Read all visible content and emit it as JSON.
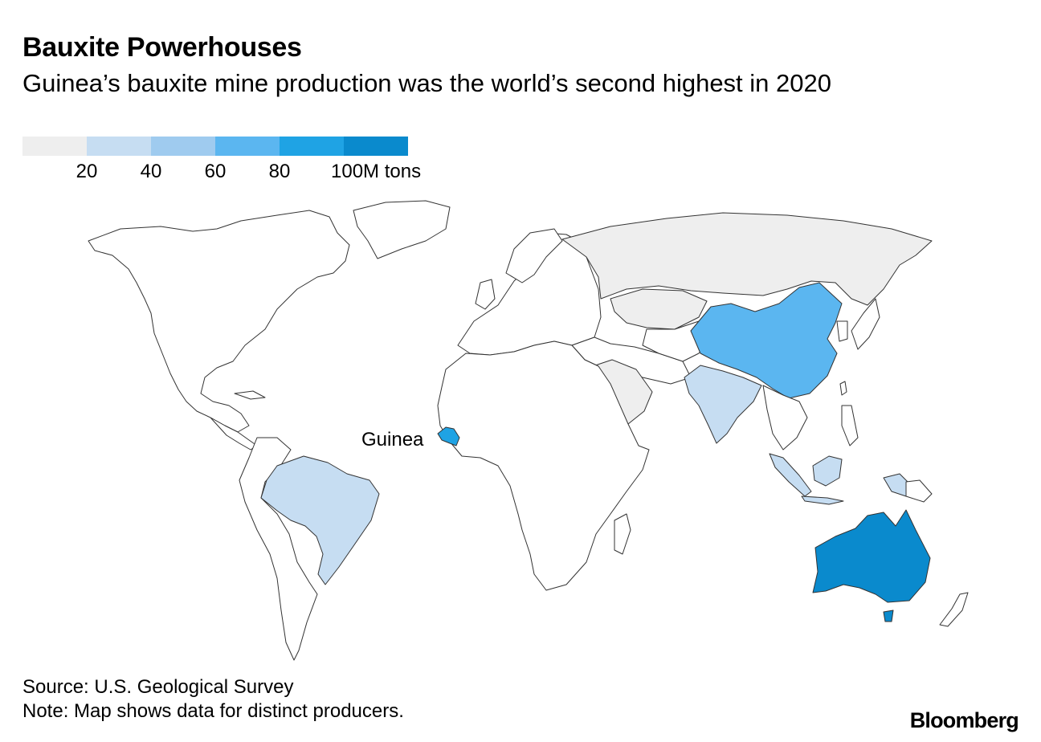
{
  "header": {
    "title": "Bauxite Powerhouses",
    "subtitle": "Guinea’s bauxite mine production was the world’s second highest in 2020"
  },
  "legend": {
    "bins": [
      {
        "color": "#eeeeee"
      },
      {
        "color": "#c6ddf2"
      },
      {
        "color": "#9fcbef"
      },
      {
        "color": "#5bb6f0"
      },
      {
        "color": "#1fa3e4"
      },
      {
        "color": "#0a8acd"
      }
    ],
    "labels": [
      "20",
      "40",
      "60",
      "80",
      "100M tons"
    ]
  },
  "map": {
    "callout": "Guinea",
    "default_fill": "#ffffff",
    "regions": [
      {
        "name": "Australia",
        "bin": 5
      },
      {
        "name": "Guinea",
        "bin": 4
      },
      {
        "name": "China",
        "bin": 3
      },
      {
        "name": "Brazil",
        "bin": 1
      },
      {
        "name": "India",
        "bin": 1
      },
      {
        "name": "Indonesia",
        "bin": 1
      },
      {
        "name": "Russia",
        "bin": 0
      },
      {
        "name": "Kazakhstan",
        "bin": 0
      },
      {
        "name": "Saudi Arabia",
        "bin": 0
      }
    ]
  },
  "footer": {
    "source": "Source: U.S. Geological Survey",
    "note": "Note: Map shows data for distinct producers.",
    "brand": "Bloomberg"
  }
}
